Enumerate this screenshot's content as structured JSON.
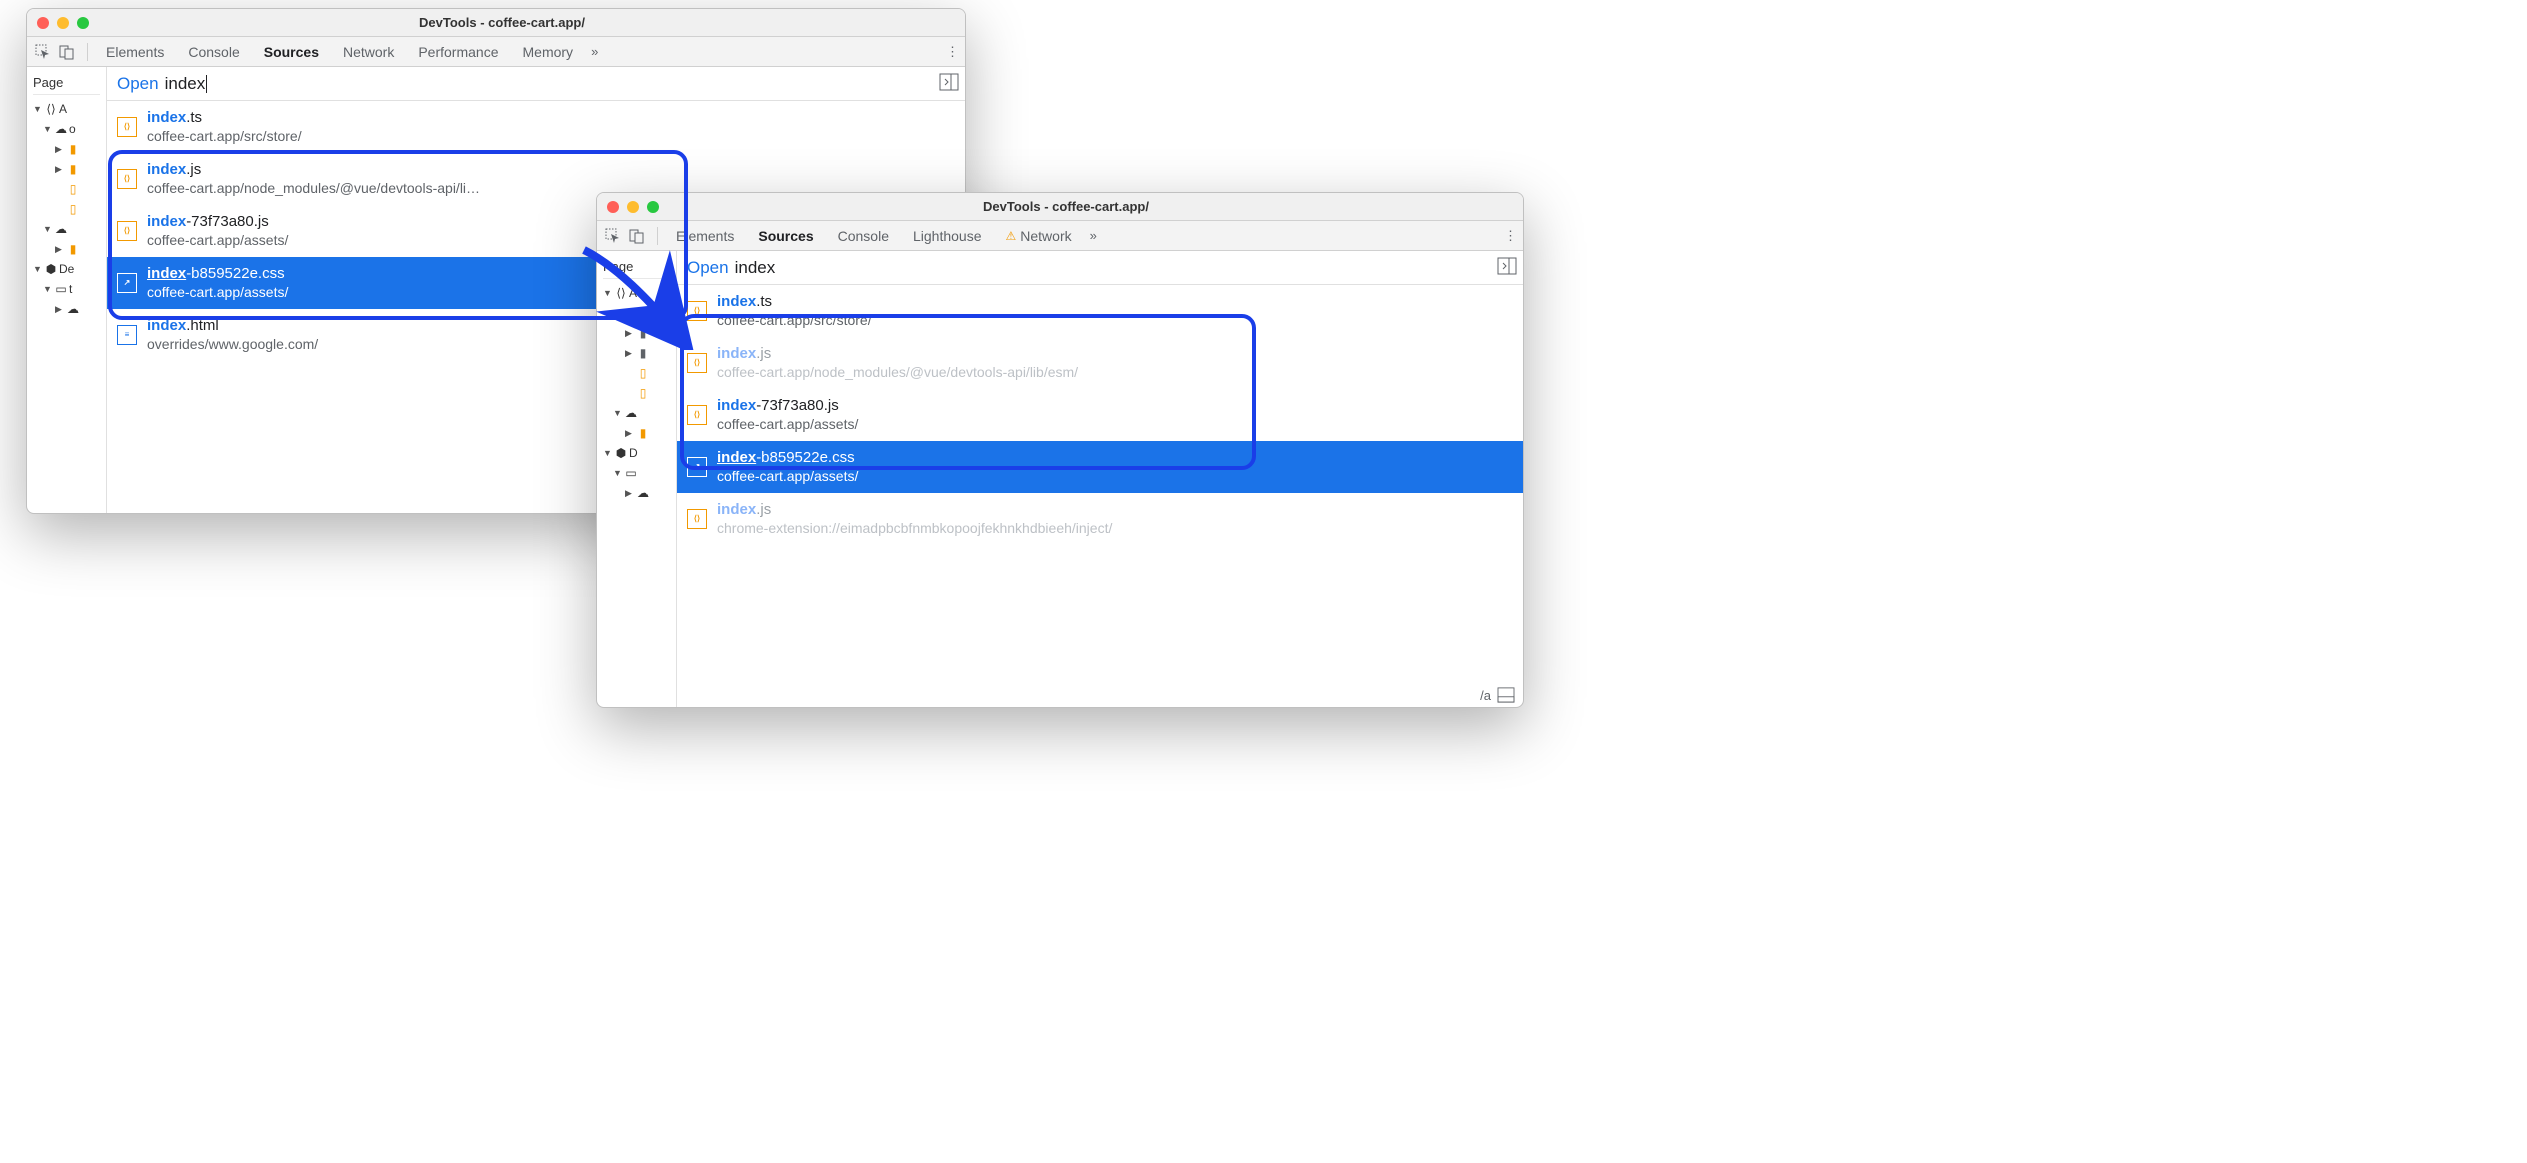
{
  "window1": {
    "title": "DevTools - coffee-cart.app/",
    "tabs": [
      "Elements",
      "Console",
      "Sources",
      "Network",
      "Performance",
      "Memory"
    ],
    "active_tab": "Sources",
    "sidebar_label": "Page",
    "search": {
      "prefix": "Open",
      "query": "index"
    },
    "tree": [
      "A",
      "o",
      "",
      "",
      "",
      "",
      "De",
      "t"
    ],
    "results": [
      {
        "match": "index",
        "rest": ".ts",
        "path": "coffee-cart.app/src/store/",
        "icon": "orange",
        "faded": false
      },
      {
        "match": "index",
        "rest": ".js",
        "path": "coffee-cart.app/node_modules/@vue/devtools-api/li…",
        "icon": "orange",
        "faded": false
      },
      {
        "match": "index",
        "rest": "-73f73a80.js",
        "path": "coffee-cart.app/assets/",
        "icon": "orange",
        "faded": false
      },
      {
        "match": "index",
        "rest": "-b859522e.css",
        "path": "coffee-cart.app/assets/",
        "icon": "purple",
        "faded": false,
        "selected": true
      },
      {
        "match": "index",
        "rest": ".html",
        "path": "overrides/www.google.com/",
        "icon": "blue",
        "faded": false
      }
    ]
  },
  "window2": {
    "title": "DevTools - coffee-cart.app/",
    "tabs": [
      "Elements",
      "Sources",
      "Console",
      "Lighthouse",
      "Network"
    ],
    "active_tab": "Sources",
    "warn_tab": "Network",
    "sidebar_label": "Page",
    "search": {
      "prefix": "Open",
      "query": "index"
    },
    "results": [
      {
        "match": "index",
        "rest": ".ts",
        "path": "coffee-cart.app/src/store/",
        "icon": "orange",
        "faded": false
      },
      {
        "match": "index",
        "rest": ".js",
        "path": "coffee-cart.app/node_modules/@vue/devtools-api/lib/esm/",
        "icon": "orange",
        "faded": true
      },
      {
        "match": "index",
        "rest": "-73f73a80.js",
        "path": "coffee-cart.app/assets/",
        "icon": "orange",
        "faded": false
      },
      {
        "match": "index",
        "rest": "-b859522e.css",
        "path": "coffee-cart.app/assets/",
        "icon": "purple",
        "faded": false,
        "selected": true
      },
      {
        "match": "index",
        "rest": ".js",
        "path": "chrome-extension://eimadpbcbfnmbkopoojfekhnkhdbieeh/inject/",
        "icon": "orange",
        "faded": true
      }
    ],
    "bottom": "/a"
  }
}
